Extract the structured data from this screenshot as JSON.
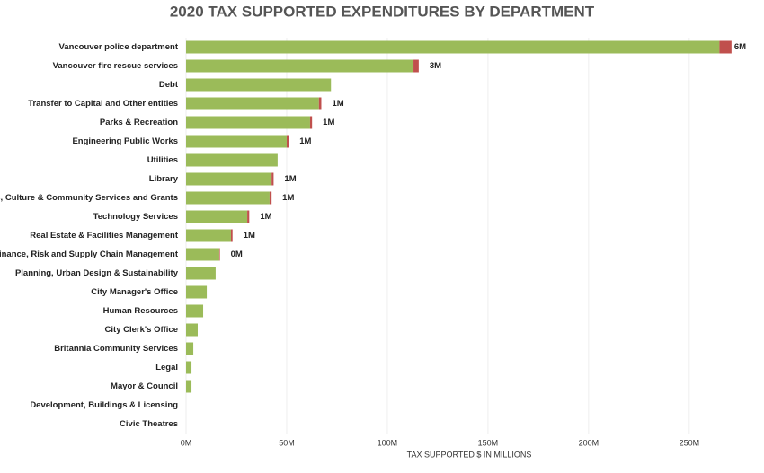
{
  "chart_data": {
    "type": "stacked-barh",
    "title": "2020 TAX SUPPORTED EXPENDITURES BY DEPARTMENT",
    "xlabel": "TAX SUPPORTED $ IN MILLIONS",
    "categories": [
      "Vancouver police department",
      "Vancouver fire rescue services",
      "Debt",
      "Transfer to Capital and Other entities",
      "Parks & Recreation",
      "Engineering Public Works",
      "Utilities",
      "Library",
      "Arts, Culture & Community Services and Grants",
      "Technology Services",
      "Real Estate & Facilities Management",
      "Finance, Risk and Supply Chain Management",
      "Planning, Urban Design & Sustainability",
      "City Manager's Office",
      "Human Resources",
      "City Clerk's Office",
      "Britannia Community Services",
      "Legal",
      "Mayor & Council",
      "Development, Buildings & Licensing",
      "Civic Theatres"
    ],
    "series": [
      {
        "color": "#9bbb59",
        "values": [
          265,
          113,
          72,
          66,
          61.6,
          50,
          45.5,
          42.5,
          41.5,
          30.4,
          22.3,
          16.5,
          14.7,
          10.3,
          8.5,
          5.8,
          3.6,
          2.7,
          2.7,
          0,
          0
        ]
      },
      {
        "color": "#c0504d",
        "values": [
          6,
          2.6,
          null,
          1.2,
          1,
          1,
          null,
          1,
          1,
          1,
          0.8,
          0.3,
          null,
          null,
          null,
          null,
          null,
          null,
          null,
          null,
          null
        ],
        "value_labels": [
          "6M",
          "3M",
          null,
          "1M",
          "1M",
          "1M",
          null,
          "1M",
          "1M",
          "1M",
          "1M",
          "0M",
          null,
          null,
          null,
          null,
          null,
          null,
          null,
          null,
          null
        ]
      }
    ],
    "xlim": [
      0,
      280
    ],
    "xticks": [
      {
        "value": 0,
        "label": "0M"
      },
      {
        "value": 50,
        "label": "50M"
      },
      {
        "value": 100,
        "label": "100M"
      },
      {
        "value": 150,
        "label": "150M"
      },
      {
        "value": 200,
        "label": "200M"
      },
      {
        "value": 250,
        "label": "250M"
      }
    ],
    "grid": true
  }
}
